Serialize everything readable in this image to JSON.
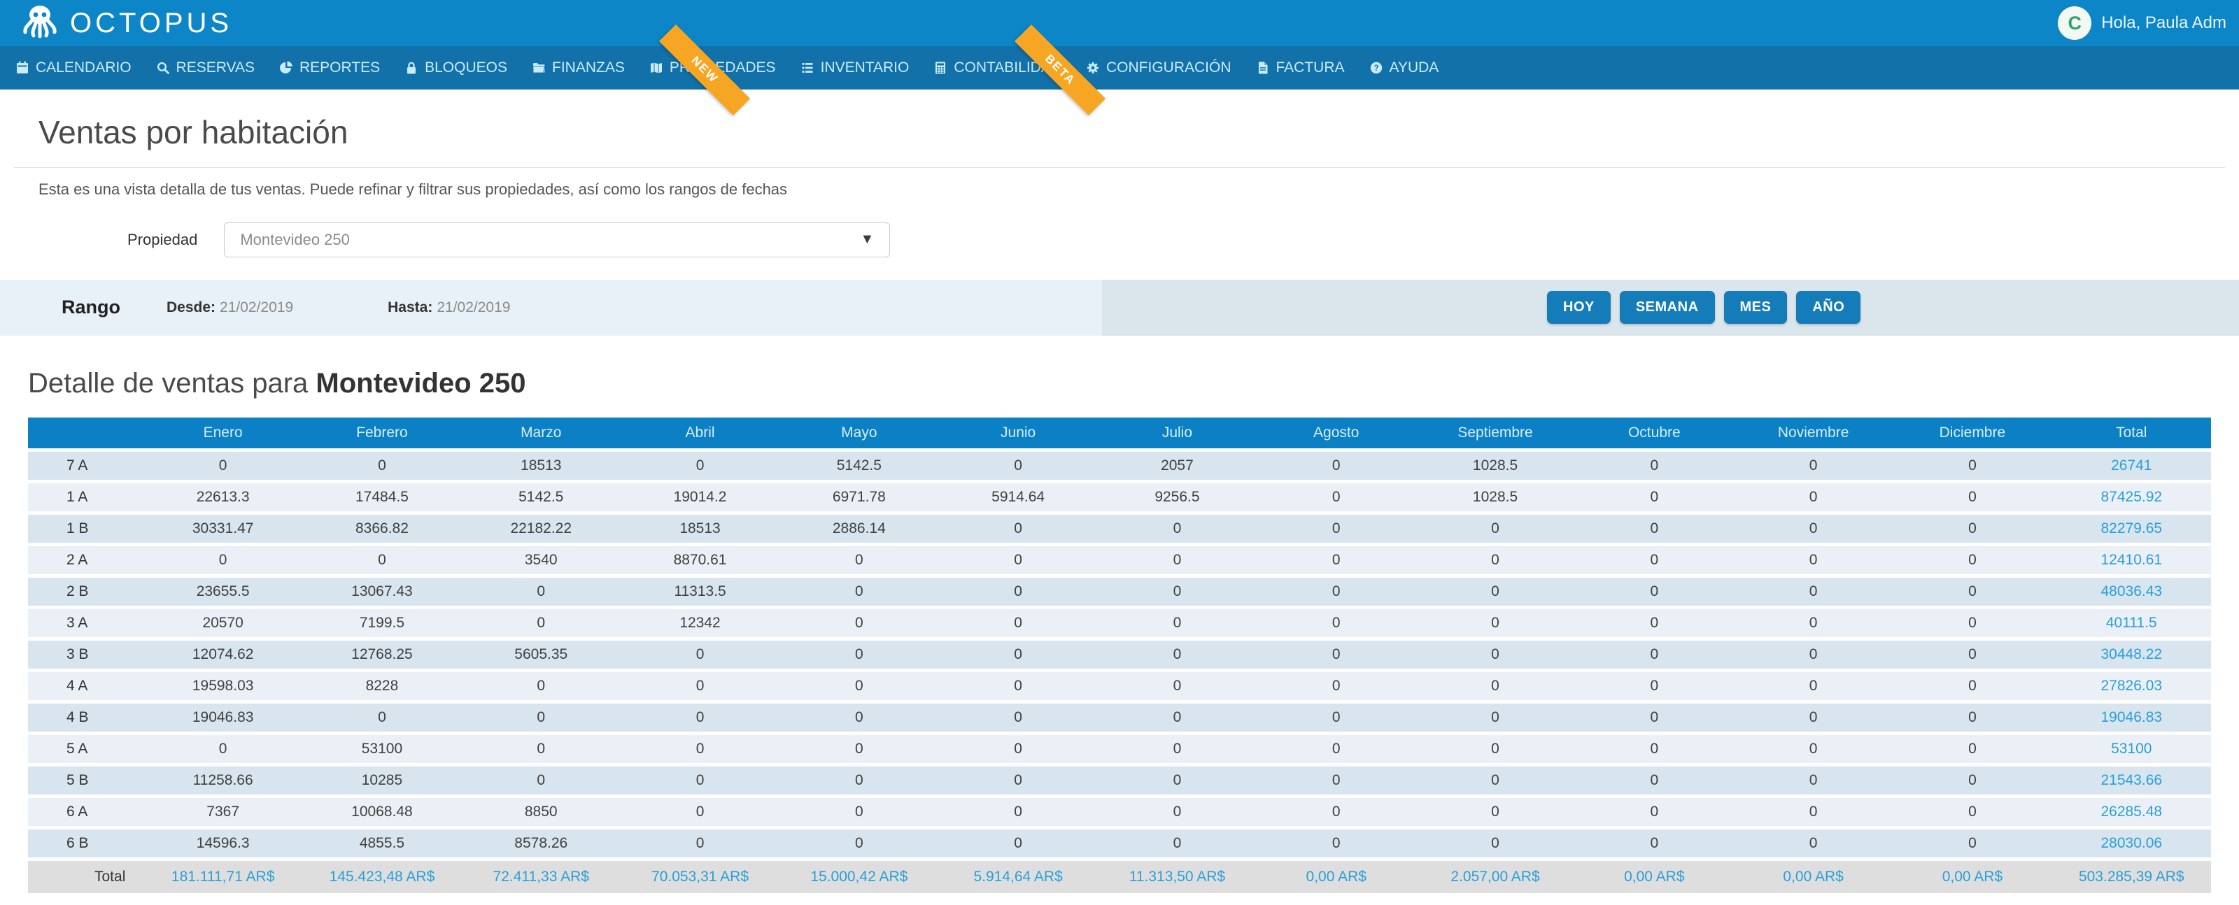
{
  "brand": {
    "name": "OCTOPUS"
  },
  "user": {
    "greeting": "Hola, Paula Adm",
    "avatar_initial": "C"
  },
  "nav": {
    "items": [
      {
        "label": "CALENDARIO",
        "icon": "calendar-icon"
      },
      {
        "label": "RESERVAS",
        "icon": "search-icon"
      },
      {
        "label": "REPORTES",
        "icon": "pie-chart-icon"
      },
      {
        "label": "BLOQUEOS",
        "icon": "lock-icon"
      },
      {
        "label": "FINANZAS",
        "icon": "folder-icon"
      },
      {
        "label": "PROPIEDADES",
        "icon": "map-icon"
      },
      {
        "label": "INVENTARIO",
        "icon": "list-icon"
      },
      {
        "label": "CONTABILIDAD",
        "icon": "calculator-icon"
      },
      {
        "label": "CONFIGURACIÓN",
        "icon": "gear-icon"
      },
      {
        "label": "FACTURA",
        "icon": "document-icon"
      },
      {
        "label": "AYUDA",
        "icon": "help-icon"
      }
    ],
    "badges": {
      "new": "NEW",
      "beta": "BETA"
    }
  },
  "page": {
    "title": "Ventas por habitación",
    "subtitle": "Esta es una vista detalla de tus ventas. Puede refinar y filtrar sus propiedades, así como los rangos de fechas",
    "property_label": "Propiedad",
    "property_value": "Montevideo 250"
  },
  "range": {
    "label": "Rango",
    "from_label": "Desde:",
    "from_value": "21/02/2019",
    "to_label": "Hasta:",
    "to_value": "21/02/2019",
    "buttons": [
      "HOY",
      "SEMANA",
      "MES",
      "AÑO"
    ]
  },
  "detail": {
    "title_prefix": "Detalle de ventas para",
    "title_property": "Montevideo 250"
  },
  "table": {
    "columns": [
      "Enero",
      "Febrero",
      "Marzo",
      "Abril",
      "Mayo",
      "Junio",
      "Julio",
      "Agosto",
      "Septiembre",
      "Octubre",
      "Noviembre",
      "Diciembre",
      "Total"
    ],
    "rows": [
      {
        "room": "7 A",
        "values": [
          "0",
          "0",
          "18513",
          "0",
          "5142.5",
          "0",
          "2057",
          "0",
          "1028.5",
          "0",
          "0",
          "0"
        ],
        "total": "26741"
      },
      {
        "room": "1 A",
        "values": [
          "22613.3",
          "17484.5",
          "5142.5",
          "19014.2",
          "6971.78",
          "5914.64",
          "9256.5",
          "0",
          "1028.5",
          "0",
          "0",
          "0"
        ],
        "total": "87425.92"
      },
      {
        "room": "1 B",
        "values": [
          "30331.47",
          "8366.82",
          "22182.22",
          "18513",
          "2886.14",
          "0",
          "0",
          "0",
          "0",
          "0",
          "0",
          "0"
        ],
        "total": "82279.65"
      },
      {
        "room": "2 A",
        "values": [
          "0",
          "0",
          "3540",
          "8870.61",
          "0",
          "0",
          "0",
          "0",
          "0",
          "0",
          "0",
          "0"
        ],
        "total": "12410.61"
      },
      {
        "room": "2 B",
        "values": [
          "23655.5",
          "13067.43",
          "0",
          "11313.5",
          "0",
          "0",
          "0",
          "0",
          "0",
          "0",
          "0",
          "0"
        ],
        "total": "48036.43"
      },
      {
        "room": "3 A",
        "values": [
          "20570",
          "7199.5",
          "0",
          "12342",
          "0",
          "0",
          "0",
          "0",
          "0",
          "0",
          "0",
          "0"
        ],
        "total": "40111.5"
      },
      {
        "room": "3 B",
        "values": [
          "12074.62",
          "12768.25",
          "5605.35",
          "0",
          "0",
          "0",
          "0",
          "0",
          "0",
          "0",
          "0",
          "0"
        ],
        "total": "30448.22"
      },
      {
        "room": "4 A",
        "values": [
          "19598.03",
          "8228",
          "0",
          "0",
          "0",
          "0",
          "0",
          "0",
          "0",
          "0",
          "0",
          "0"
        ],
        "total": "27826.03"
      },
      {
        "room": "4 B",
        "values": [
          "19046.83",
          "0",
          "0",
          "0",
          "0",
          "0",
          "0",
          "0",
          "0",
          "0",
          "0",
          "0"
        ],
        "total": "19046.83"
      },
      {
        "room": "5 A",
        "values": [
          "0",
          "53100",
          "0",
          "0",
          "0",
          "0",
          "0",
          "0",
          "0",
          "0",
          "0",
          "0"
        ],
        "total": "53100"
      },
      {
        "room": "5 B",
        "values": [
          "11258.66",
          "10285",
          "0",
          "0",
          "0",
          "0",
          "0",
          "0",
          "0",
          "0",
          "0",
          "0"
        ],
        "total": "21543.66"
      },
      {
        "room": "6 A",
        "values": [
          "7367",
          "10068.48",
          "8850",
          "0",
          "0",
          "0",
          "0",
          "0",
          "0",
          "0",
          "0",
          "0"
        ],
        "total": "26285.48"
      },
      {
        "room": "6 B",
        "values": [
          "14596.3",
          "4855.5",
          "8578.26",
          "0",
          "0",
          "0",
          "0",
          "0",
          "0",
          "0",
          "0",
          "0"
        ],
        "total": "28030.06"
      }
    ],
    "footer": {
      "label": "Total",
      "values": [
        "181.111,71 AR$",
        "145.423,48 AR$",
        "72.411,33 AR$",
        "70.053,31 AR$",
        "15.000,42 AR$",
        "5.914,64 AR$",
        "11.313,50 AR$",
        "0,00 AR$",
        "2.057,00 AR$",
        "0,00 AR$",
        "0,00 AR$",
        "0,00 AR$"
      ],
      "total": "503.285,39 AR$"
    }
  },
  "colors": {
    "header_blue": "#0d86c8",
    "nav_blue": "#1271a9",
    "table_header_blue": "#0b80c4",
    "accent_blue": "#2a9fd8",
    "button_blue": "#147cb8",
    "ribbon_orange": "#f6a623",
    "range_bg_left": "#e9f1f8",
    "range_bg_right": "#dbe5ec",
    "row_dark": "#d8e5ee",
    "row_light": "#eaf0f6",
    "footer_gray": "#dedede"
  }
}
